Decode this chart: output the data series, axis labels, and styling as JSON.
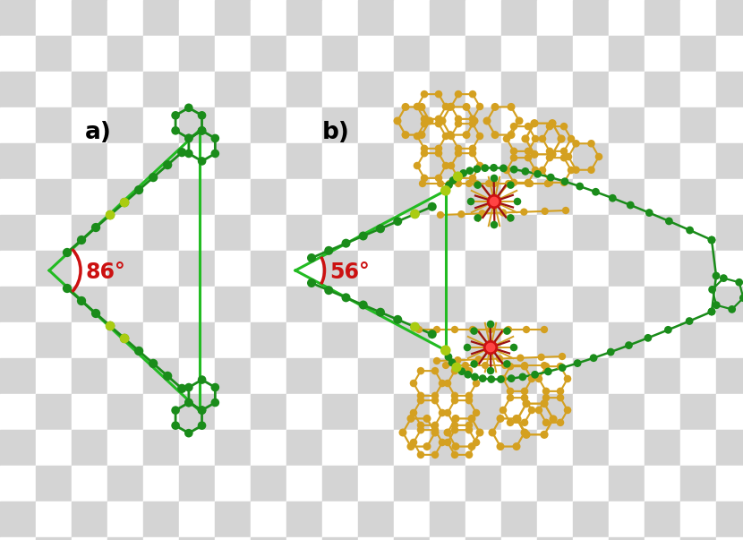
{
  "bg_light": "#d4d4d4",
  "bg_dark": "#ffffff",
  "checker_size": 40,
  "green_dark": "#1a8c1a",
  "green_bright": "#22bb22",
  "yellow_green": "#aacc11",
  "gold": "#d4a020",
  "red_metal": "#cc1111",
  "dark_red": "#991111",
  "line_color": "#22bb22",
  "fig_w": 8.3,
  "fig_h": 6.03
}
